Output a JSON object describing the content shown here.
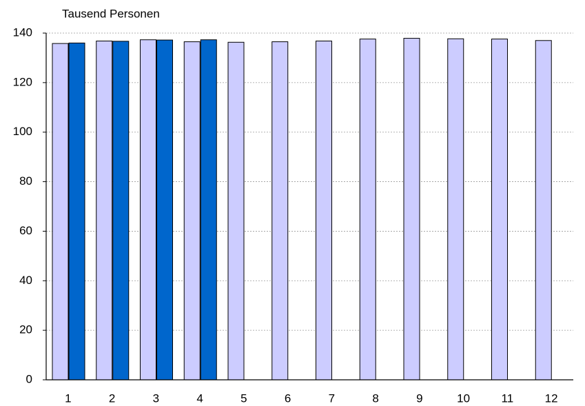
{
  "chart_data": {
    "type": "bar",
    "y_label": "Tausend Personen",
    "categories": [
      "1",
      "2",
      "3",
      "4",
      "5",
      "6",
      "7",
      "8",
      "9",
      "10",
      "11",
      "12"
    ],
    "series": [
      {
        "color": "#ccccff",
        "values": [
          135.8,
          136.8,
          137.3,
          136.5,
          136.3,
          136.5,
          136.8,
          137.6,
          137.9,
          137.7,
          137.6,
          137.0
        ]
      },
      {
        "color": "#0066cc",
        "values": [
          136.0,
          136.7,
          137.2,
          137.3,
          null,
          null,
          null,
          null,
          null,
          null,
          null,
          null
        ]
      }
    ],
    "ylim": [
      0,
      140
    ],
    "yticks": [
      0,
      20,
      40,
      60,
      80,
      100,
      120,
      140
    ],
    "grid": true
  }
}
